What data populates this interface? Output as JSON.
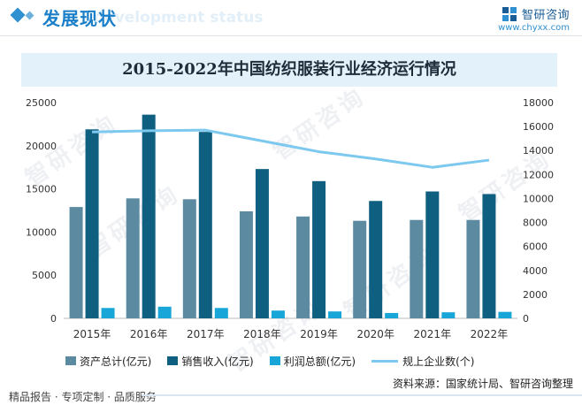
{
  "header": {
    "section_title": "发展现状",
    "ghost_text": "development status",
    "brand_name": "智研咨询",
    "brand_url": "www.chyxx.com"
  },
  "watermark": "智研咨询",
  "chart_data": {
    "type": "bar+line",
    "title": "2015-2022年中国纺织服装行业经济运行情况",
    "categories": [
      "2015年",
      "2016年",
      "2017年",
      "2018年",
      "2019年",
      "2020年",
      "2021年",
      "2022年"
    ],
    "series": [
      {
        "name": "资产总计(亿元)",
        "type": "bar",
        "axis": "left",
        "color": "#5c8aa0",
        "values": [
          12900,
          13900,
          13800,
          12400,
          11800,
          11300,
          11400,
          11400
        ]
      },
      {
        "name": "销售收入(亿元)",
        "type": "bar",
        "axis": "left",
        "color": "#0f5f80",
        "values": [
          21900,
          23600,
          21600,
          17300,
          15900,
          13600,
          14700,
          14400
        ]
      },
      {
        "name": "利润总额(亿元)",
        "type": "bar",
        "axis": "left",
        "color": "#18a6d8",
        "values": [
          1200,
          1350,
          1200,
          900,
          800,
          620,
          700,
          750
        ]
      },
      {
        "name": "规上企业数(个)",
        "type": "line",
        "axis": "right",
        "color": "#7cc8ef",
        "values": [
          15550,
          15650,
          15700,
          14800,
          13900,
          13300,
          12600,
          13200
        ]
      }
    ],
    "y_left": {
      "min": 0,
      "max": 25000,
      "ticks": [
        0,
        5000,
        10000,
        15000,
        20000,
        25000
      ]
    },
    "y_right": {
      "min": 0,
      "max": 18000,
      "ticks": [
        0,
        2000,
        4000,
        6000,
        8000,
        10000,
        12000,
        14000,
        16000,
        18000
      ]
    },
    "legend_position": "bottom",
    "grid": false
  },
  "source": "资料来源：国家统计局、智研咨询整理",
  "footer": "精品报告 · 专项定制 · 品质服务"
}
